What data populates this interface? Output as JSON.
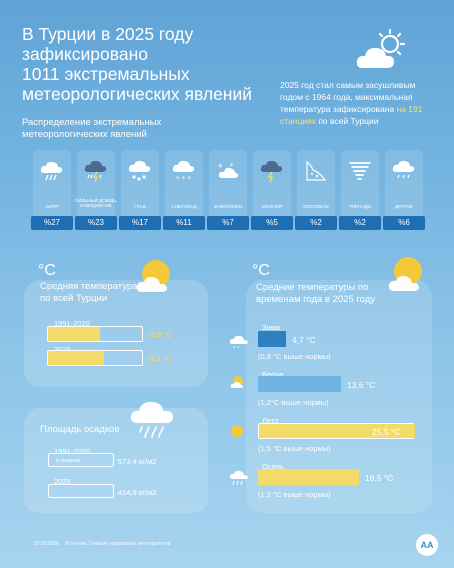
{
  "header": {
    "title_lines": [
      "В Турции в 2025 году",
      "зафиксировано",
      "1011 экстремальных",
      "метеорологических явлений"
    ],
    "subtitle": "Распределение экстремальных метеорологических явлений",
    "note_before": "2025 год стал самым засушливым годом с 1964 года, максимальная температура зафиксирована",
    "note_highlight": "на 191 станциях",
    "note_after": "по всей Турции"
  },
  "categories": [
    {
      "name": "БУРЯ",
      "value": "%27",
      "icon": "storm-icon"
    },
    {
      "name": "СИЛЬНЫЙ ДОЖДЬ, НАВОДНЕНИЕ",
      "value": "%23",
      "icon": "heavy-rain-icon"
    },
    {
      "name": "ГРАД",
      "value": "%17",
      "icon": "hail-icon"
    },
    {
      "name": "СНЕГОПАД",
      "value": "%11",
      "icon": "snow-icon"
    },
    {
      "name": "ЗАМОРОЗКИ",
      "value": "%7",
      "icon": "frost-icon"
    },
    {
      "name": "МОЛНИЯ",
      "value": "%5",
      "icon": "lightning-icon"
    },
    {
      "name": "ОПОЛЗЕНЬ",
      "value": "%2",
      "icon": "landslide-icon"
    },
    {
      "name": "ТОРНАДО",
      "value": "%2",
      "icon": "tornado-icon"
    },
    {
      "name": "ДРУГОЕ",
      "value": "%6",
      "icon": "other-icon"
    }
  ],
  "avg_temp": {
    "unit": "°C",
    "label": "Средняя температура по всей Турции",
    "rows": [
      {
        "period": "1991-2020",
        "value": "13,9 °C",
        "fraction": 0.55
      },
      {
        "period": "2025",
        "value": "15,1 °C",
        "fraction": 0.6
      }
    ]
  },
  "precip": {
    "label": "Площадь осадков",
    "rows": [
      {
        "period": "1991-2020",
        "sub": "в среднем",
        "value": "573,4 кг/м2",
        "fraction": 0.0
      },
      {
        "period": "2025",
        "sub": "",
        "value": "414,9 кг/м2",
        "fraction": 0.0
      }
    ]
  },
  "seasons": {
    "unit": "°C",
    "label": "Средние температуры по временам года в 2025 году",
    "rows": [
      {
        "name": "Зима",
        "value": "4,7 °C",
        "note": "(0,8 °C выше нормы)",
        "fraction": 0.18,
        "color": "#2f7fc1"
      },
      {
        "name": "Весна",
        "value": "13,6 °C",
        "note": "(1,2°C выше нормы)",
        "fraction": 0.53,
        "color": "#6fb3e3"
      },
      {
        "name": "Лето",
        "value": "25,5 °C",
        "note": "(1,5 °C  выше нормы)",
        "fraction": 1.0,
        "color": "#f3db6a"
      },
      {
        "name": "Осень",
        "value": "16,5 °C",
        "note": "(1,2 °C выше нормы)",
        "fraction": 0.65,
        "color": "#f3db6a"
      }
    ]
  },
  "footer": {
    "date": "20.02.2026",
    "source": "Источник: Главное управление метеорологии",
    "logo": "AA"
  }
}
